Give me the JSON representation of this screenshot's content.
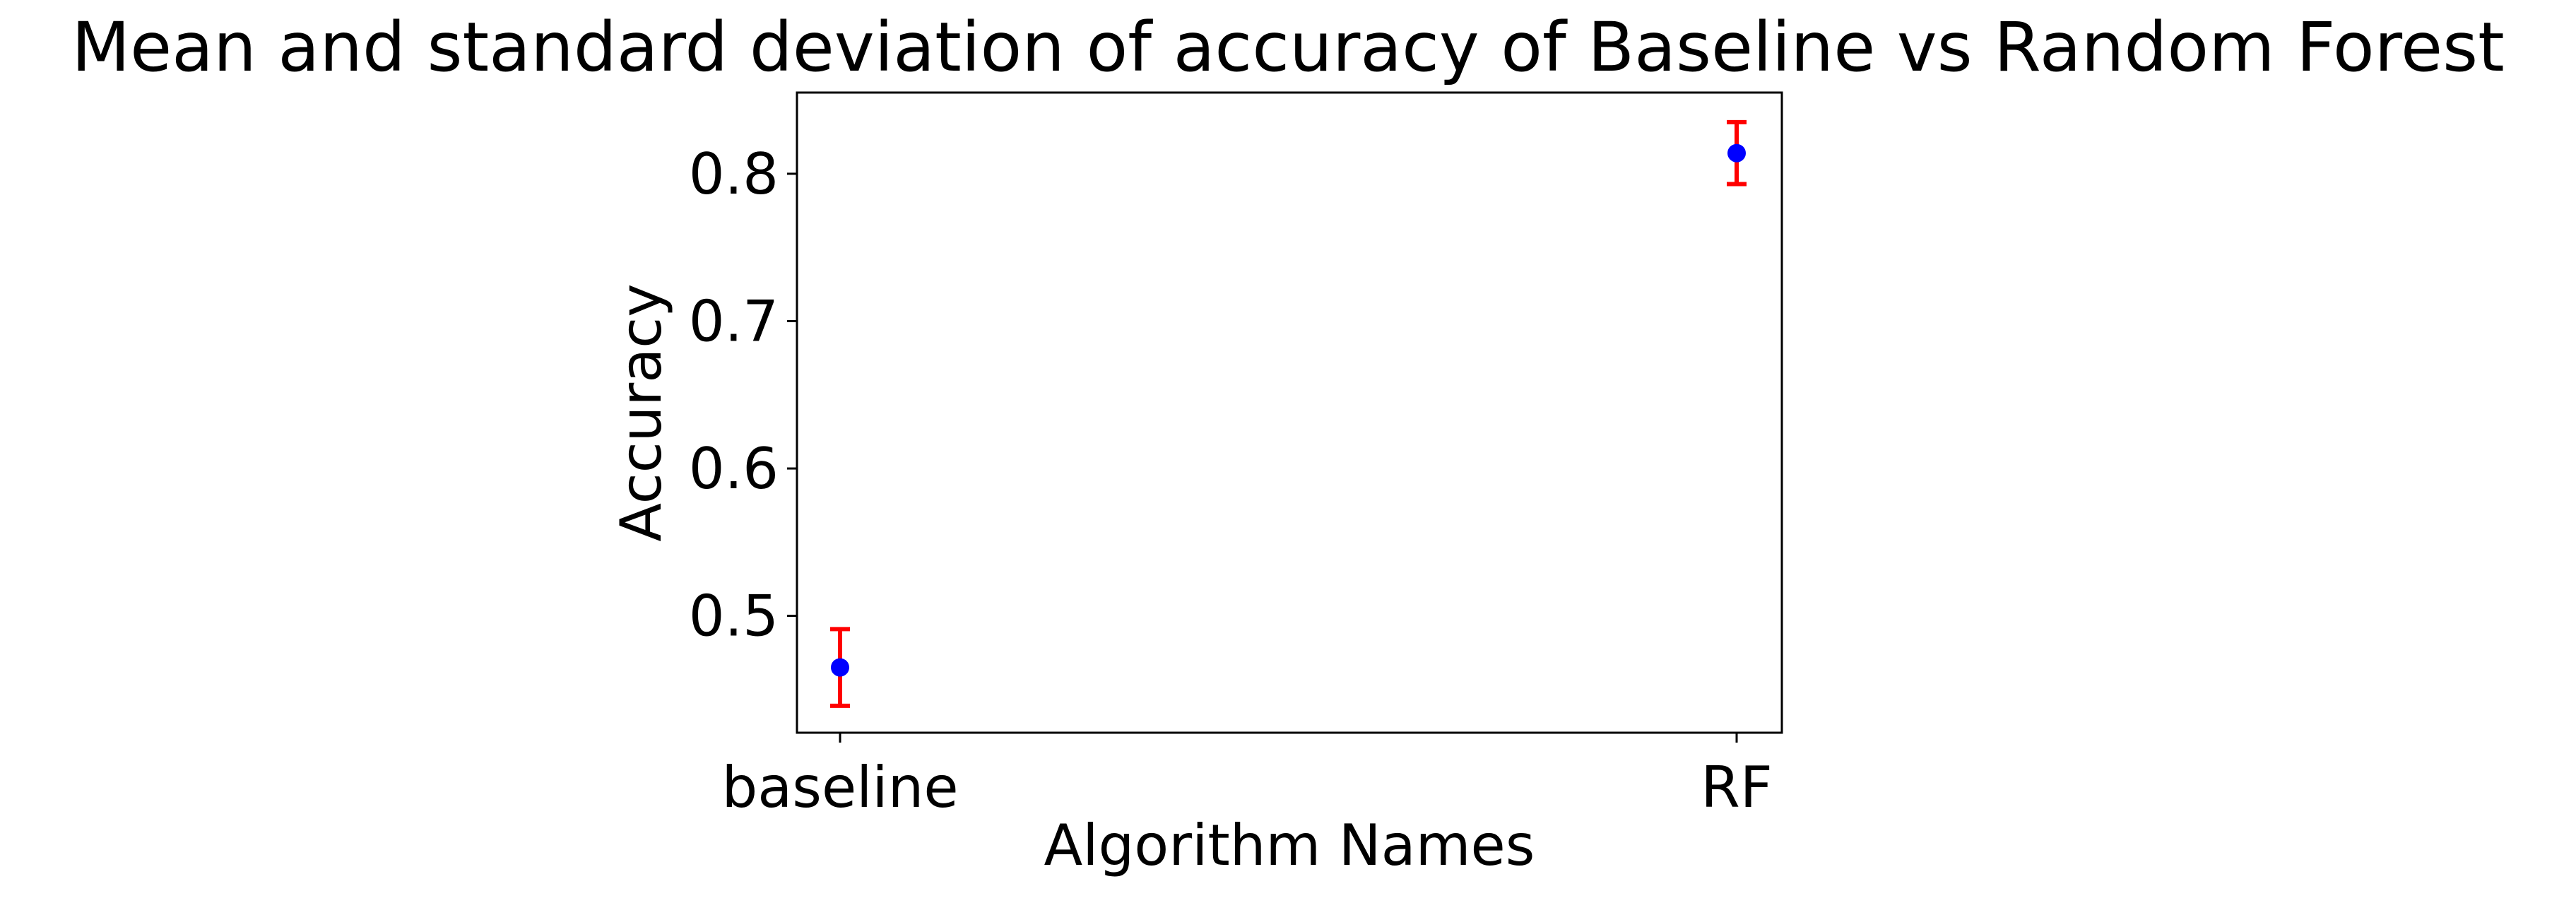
{
  "chart_data": {
    "type": "scatter",
    "title": "Mean and standard deviation of accuracy of Baseline vs Random Forest",
    "xlabel": "Algorithm Names",
    "ylabel": "Accuracy",
    "categories": [
      "baseline",
      "RF"
    ],
    "series": [
      {
        "values": [
          0.465,
          0.814
        ],
        "errors": [
          0.026,
          0.021
        ]
      }
    ],
    "yticks": [
      0.5,
      0.6,
      0.7,
      0.8
    ],
    "ytick_labels": [
      "0.5",
      "0.6",
      "0.7",
      "0.8"
    ],
    "ylim": [
      0.4207,
      0.8551
    ],
    "grid": false,
    "legend": "none",
    "colors": {
      "marker": "#0000ff",
      "errorbar": "#ff0000",
      "axes": "#000000",
      "text": "#000000"
    }
  }
}
